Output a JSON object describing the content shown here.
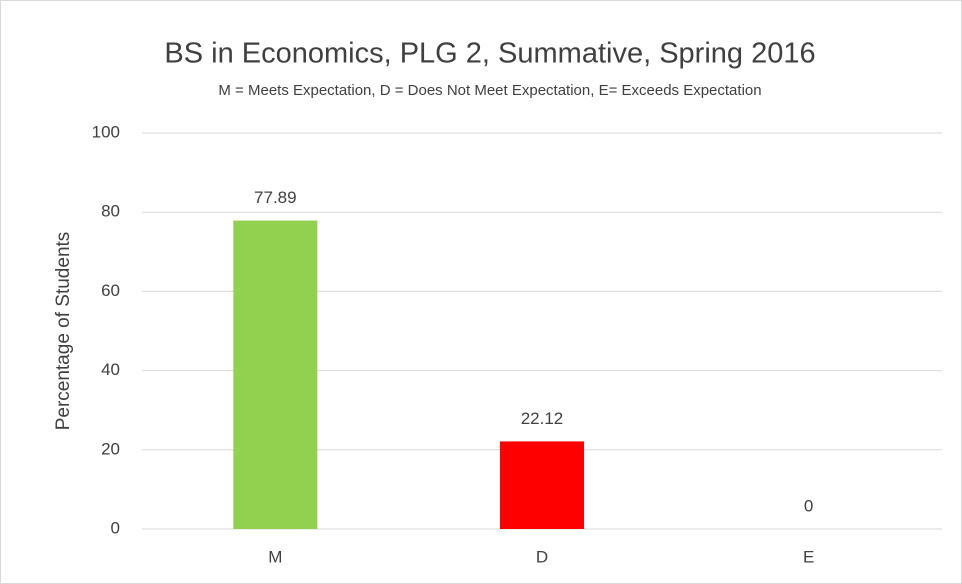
{
  "chart_data": {
    "type": "bar",
    "title": "BS in Economics, PLG 2, Summative, Spring 2016",
    "subtitle": "M = Meets Expectation, D = Does Not Meet Expectation, E= Exceeds Expectation",
    "y_label": "Percentage of Students",
    "categories": [
      "M",
      "D",
      "E"
    ],
    "values": [
      77.89,
      22.12,
      0
    ],
    "colors": [
      "#92d050",
      "#ff0000",
      "#4472c4"
    ],
    "ylim": [
      0,
      100
    ],
    "yticks": [
      0,
      20,
      40,
      60,
      80,
      100
    ],
    "grid": true
  }
}
